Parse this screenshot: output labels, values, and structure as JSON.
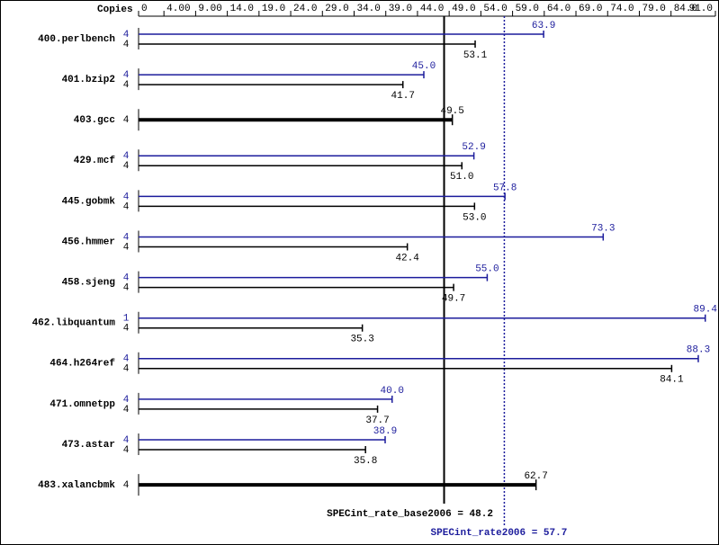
{
  "chart_data": {
    "type": "spec-bar",
    "copies_label": "Copies",
    "xlim": [
      0,
      91
    ],
    "xticks": [
      0,
      {
        "value": 4,
        "label": "4.00"
      },
      {
        "value": 9,
        "label": "9.00"
      },
      {
        "value": 14,
        "label": "14.0"
      },
      {
        "value": 19,
        "label": "19.0"
      },
      {
        "value": 24,
        "label": "24.0"
      },
      {
        "value": 29,
        "label": "29.0"
      },
      {
        "value": 34,
        "label": "34.0"
      },
      {
        "value": 39,
        "label": "39.0"
      },
      {
        "value": 44,
        "label": "44.0"
      },
      {
        "value": 49,
        "label": "49.0"
      },
      {
        "value": 54,
        "label": "54.0"
      },
      {
        "value": 59,
        "label": "59.0"
      },
      {
        "value": 64,
        "label": "64.0"
      },
      {
        "value": 69,
        "label": "69.0"
      },
      {
        "value": 74,
        "label": "74.0"
      },
      {
        "value": 79,
        "label": "79.0"
      },
      {
        "value": 84,
        "label": "84.0"
      },
      {
        "value": 91,
        "label": "91.0"
      }
    ],
    "peak_color": "#1c1c9c",
    "base_color": "#000000",
    "benchmarks": [
      {
        "name": "400.perlbench",
        "peak": {
          "copies": 4,
          "value": 63.9,
          "label": "63.9"
        },
        "base": {
          "copies": 4,
          "value": 53.1,
          "label": "53.1"
        }
      },
      {
        "name": "401.bzip2",
        "peak": {
          "copies": 4,
          "value": 45.0,
          "label": "45.0"
        },
        "base": {
          "copies": 4,
          "value": 41.7,
          "label": "41.7"
        }
      },
      {
        "name": "403.gcc",
        "base": {
          "copies": 4,
          "value": 49.5,
          "label": "49.5"
        }
      },
      {
        "name": "429.mcf",
        "peak": {
          "copies": 4,
          "value": 52.9,
          "label": "52.9"
        },
        "base": {
          "copies": 4,
          "value": 51.0,
          "label": "51.0"
        }
      },
      {
        "name": "445.gobmk",
        "peak": {
          "copies": 4,
          "value": 57.8,
          "label": "57.8"
        },
        "base": {
          "copies": 4,
          "value": 53.0,
          "label": "53.0"
        }
      },
      {
        "name": "456.hmmer",
        "peak": {
          "copies": 4,
          "value": 73.3,
          "label": "73.3"
        },
        "base": {
          "copies": 4,
          "value": 42.4,
          "label": "42.4"
        }
      },
      {
        "name": "458.sjeng",
        "peak": {
          "copies": 4,
          "value": 55.0,
          "label": "55.0"
        },
        "base": {
          "copies": 4,
          "value": 49.7,
          "label": "49.7"
        }
      },
      {
        "name": "462.libquantum",
        "peak": {
          "copies": 1,
          "value": 89.4,
          "label": "89.4"
        },
        "base": {
          "copies": 4,
          "value": 35.3,
          "label": "35.3"
        }
      },
      {
        "name": "464.h264ref",
        "peak": {
          "copies": 4,
          "value": 88.3,
          "label": "88.3"
        },
        "base": {
          "copies": 4,
          "value": 84.1,
          "label": "84.1"
        }
      },
      {
        "name": "471.omnetpp",
        "peak": {
          "copies": 4,
          "value": 40.0,
          "label": "40.0"
        },
        "base": {
          "copies": 4,
          "value": 37.7,
          "label": "37.7"
        }
      },
      {
        "name": "473.astar",
        "peak": {
          "copies": 4,
          "value": 38.9,
          "label": "38.9"
        },
        "base": {
          "copies": 4,
          "value": 35.8,
          "label": "35.8"
        }
      },
      {
        "name": "483.xalancbmk",
        "base": {
          "copies": 4,
          "value": 62.7,
          "label": "62.7"
        }
      }
    ],
    "base_summary": {
      "value": 48.2,
      "label": "SPECint_rate_base2006 = 48.2"
    },
    "peak_summary": {
      "value": 57.7,
      "label": "SPECint_rate2006 = 57.7"
    }
  }
}
